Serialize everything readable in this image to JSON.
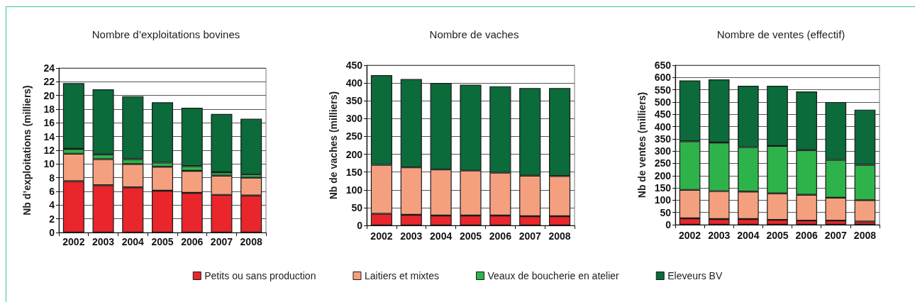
{
  "chart_data": [
    {
      "type": "bar",
      "title": "Nombre d’exploitations bovines",
      "ylabel": "Nb d’exploitations (milliers)",
      "categories": [
        "2002",
        "2003",
        "2004",
        "2005",
        "2006",
        "2007",
        "2008"
      ],
      "stacked": true,
      "ylim": [
        0,
        24
      ],
      "yticks": [
        0,
        2,
        4,
        6,
        8,
        10,
        12,
        14,
        16,
        18,
        20,
        22,
        24
      ],
      "grid": "y",
      "series": [
        {
          "color": "#e8262b",
          "values": [
            7.5,
            6.9,
            6.6,
            6.1,
            5.8,
            5.5,
            5.4
          ]
        },
        {
          "color": "#f4a07f",
          "values": [
            4.0,
            3.8,
            3.4,
            3.5,
            3.2,
            2.8,
            2.6
          ]
        },
        {
          "color": "#2db34a",
          "values": [
            0.7,
            0.7,
            0.7,
            0.6,
            0.7,
            0.5,
            0.5
          ]
        },
        {
          "color": "#0b6b3a",
          "values": [
            9.6,
            9.5,
            9.2,
            8.8,
            8.5,
            8.5,
            8.1
          ]
        }
      ]
    },
    {
      "type": "bar",
      "title": "Nombre de vaches",
      "ylabel": "Nb de vaches (milliers)",
      "categories": [
        "2002",
        "2003",
        "2004",
        "2005",
        "2006",
        "2007",
        "2008"
      ],
      "stacked": true,
      "ylim": [
        0,
        450
      ],
      "yticks": [
        0,
        50,
        100,
        150,
        200,
        250,
        300,
        350,
        400,
        450
      ],
      "grid": "y",
      "series": [
        {
          "color": "#e8262b",
          "values": [
            33,
            30,
            28,
            28,
            28,
            26,
            26
          ]
        },
        {
          "color": "#f4a07f",
          "values": [
            137,
            133,
            129,
            126,
            120,
            114,
            113
          ]
        },
        {
          "color": "#0b6b3a",
          "values": [
            252,
            248,
            243,
            241,
            243,
            246,
            247
          ]
        }
      ]
    },
    {
      "type": "bar",
      "title": "Nombre de ventes (effectif)",
      "ylabel": "Nb de ventes (milliers)",
      "categories": [
        "2002",
        "2003",
        "2004",
        "2005",
        "2006",
        "2007",
        "2008"
      ],
      "stacked": true,
      "ylim": [
        0,
        650
      ],
      "yticks": [
        0,
        50,
        100,
        150,
        200,
        250,
        300,
        350,
        400,
        450,
        500,
        550,
        600,
        650
      ],
      "grid": "y",
      "legend": "bottom",
      "series": [
        {
          "name": "Petits ou sans production",
          "color": "#e8262b",
          "values": [
            26,
            23,
            23,
            20,
            17,
            17,
            13
          ]
        },
        {
          "name": "Laitiers et mixtes",
          "color": "#f4a07f",
          "values": [
            116,
            114,
            112,
            108,
            105,
            93,
            87
          ]
        },
        {
          "name": "Veaux de boucherie en atelier",
          "color": "#2db34a",
          "values": [
            198,
            198,
            181,
            193,
            182,
            154,
            144
          ]
        },
        {
          "name": "Eleveurs BV",
          "color": "#0b6b3a",
          "values": [
            248,
            257,
            250,
            245,
            239,
            236,
            225
          ]
        }
      ]
    }
  ]
}
